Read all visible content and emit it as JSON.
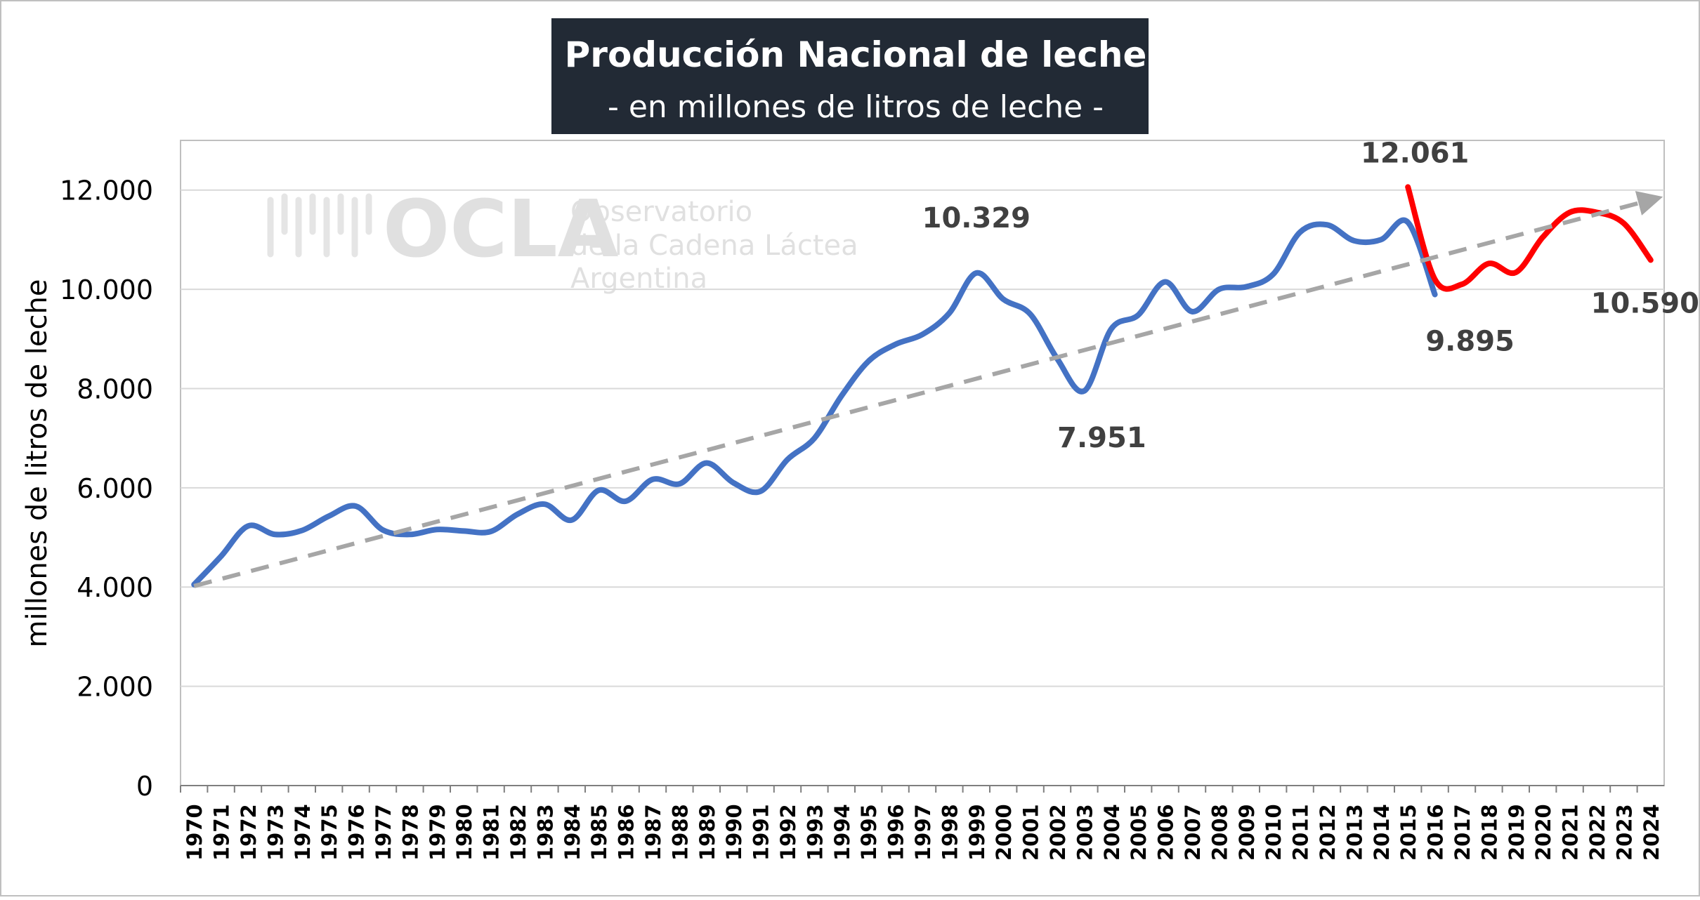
{
  "chart_data": {
    "type": "line",
    "title": "Producción Nacional de leche",
    "subtitle": "- en millones de litros de leche -",
    "xlabel": "",
    "ylabel": "millones de litros de leche",
    "ylim": [
      0,
      13000
    ],
    "yticks": [
      0,
      2000,
      4000,
      6000,
      8000,
      10000,
      12000
    ],
    "ytick_labels": [
      "0",
      "2.000",
      "4.000",
      "6.000",
      "8.000",
      "10.000",
      "12.000"
    ],
    "grid": true,
    "legend": "none",
    "categories": [
      "1970",
      "1971",
      "1972",
      "1973",
      "1974",
      "1975",
      "1976",
      "1977",
      "1978",
      "1979",
      "1980",
      "1981",
      "1982",
      "1983",
      "1984",
      "1985",
      "1986",
      "1987",
      "1988",
      "1989",
      "1990",
      "1991",
      "1992",
      "1993",
      "1994",
      "1995",
      "1996",
      "1997",
      "1998",
      "1999",
      "2000",
      "2001",
      "2002",
      "2003",
      "2004",
      "2005",
      "2006",
      "2007",
      "2008",
      "2009",
      "2010",
      "2011",
      "2012",
      "2013",
      "2014",
      "2015",
      "2016",
      "2017",
      "2018",
      "2019",
      "2020",
      "2021",
      "2022",
      "2023",
      "2024"
    ],
    "series": [
      {
        "color": "#4472C4",
        "x": [
          "1970",
          "1971",
          "1972",
          "1973",
          "1974",
          "1975",
          "1976",
          "1977",
          "1978",
          "1979",
          "1980",
          "1981",
          "1982",
          "1983",
          "1984",
          "1985",
          "1986",
          "1987",
          "1988",
          "1989",
          "1990",
          "1991",
          "1992",
          "1993",
          "1994",
          "1995",
          "1996",
          "1997",
          "1998",
          "1999",
          "2000",
          "2001",
          "2002",
          "2003",
          "2004",
          "2005",
          "2006",
          "2007",
          "2008",
          "2009",
          "2010",
          "2011",
          "2012",
          "2013",
          "2014",
          "2015",
          "2016"
        ],
        "values": [
          4050,
          4620,
          5230,
          5060,
          5140,
          5430,
          5630,
          5150,
          5060,
          5160,
          5130,
          5120,
          5470,
          5670,
          5350,
          5950,
          5730,
          6170,
          6080,
          6500,
          6100,
          5930,
          6570,
          7000,
          7850,
          8550,
          8890,
          9090,
          9520,
          10329,
          9800,
          9500,
          8600,
          7951,
          9200,
          9480,
          10150,
          9550,
          10000,
          10050,
          10300,
          11150,
          11300,
          10980,
          11000,
          11350,
          9895
        ]
      },
      {
        "color": "#FF0000",
        "x": [
          "2015",
          "2016",
          "2017",
          "2018",
          "2019",
          "2020",
          "2021",
          "2022",
          "2023",
          "2024"
        ],
        "values": [
          12061,
          10200,
          10100,
          10520,
          10340,
          11050,
          11550,
          11550,
          11330,
          10590
        ]
      },
      {
        "color": "#A6A6A6",
        "style": "dashed",
        "x": [
          "1970",
          "2024"
        ],
        "values": [
          4020,
          11800
        ]
      }
    ],
    "annotations": [
      {
        "text": "10.329",
        "x": "1999",
        "value": 10329
      },
      {
        "text": "7.951",
        "x": "2003",
        "value": 7951
      },
      {
        "text": "12.061",
        "x": "2015",
        "value": 12061
      },
      {
        "text": "9.895",
        "x": "2016",
        "value": 9895
      },
      {
        "text": "10.590",
        "x": "2024",
        "value": 10590
      }
    ]
  },
  "watermark": {
    "brand": "OCLA",
    "line1": "Observatorio",
    "line2": "de la Cadena Láctea",
    "line3": "Argentina"
  }
}
